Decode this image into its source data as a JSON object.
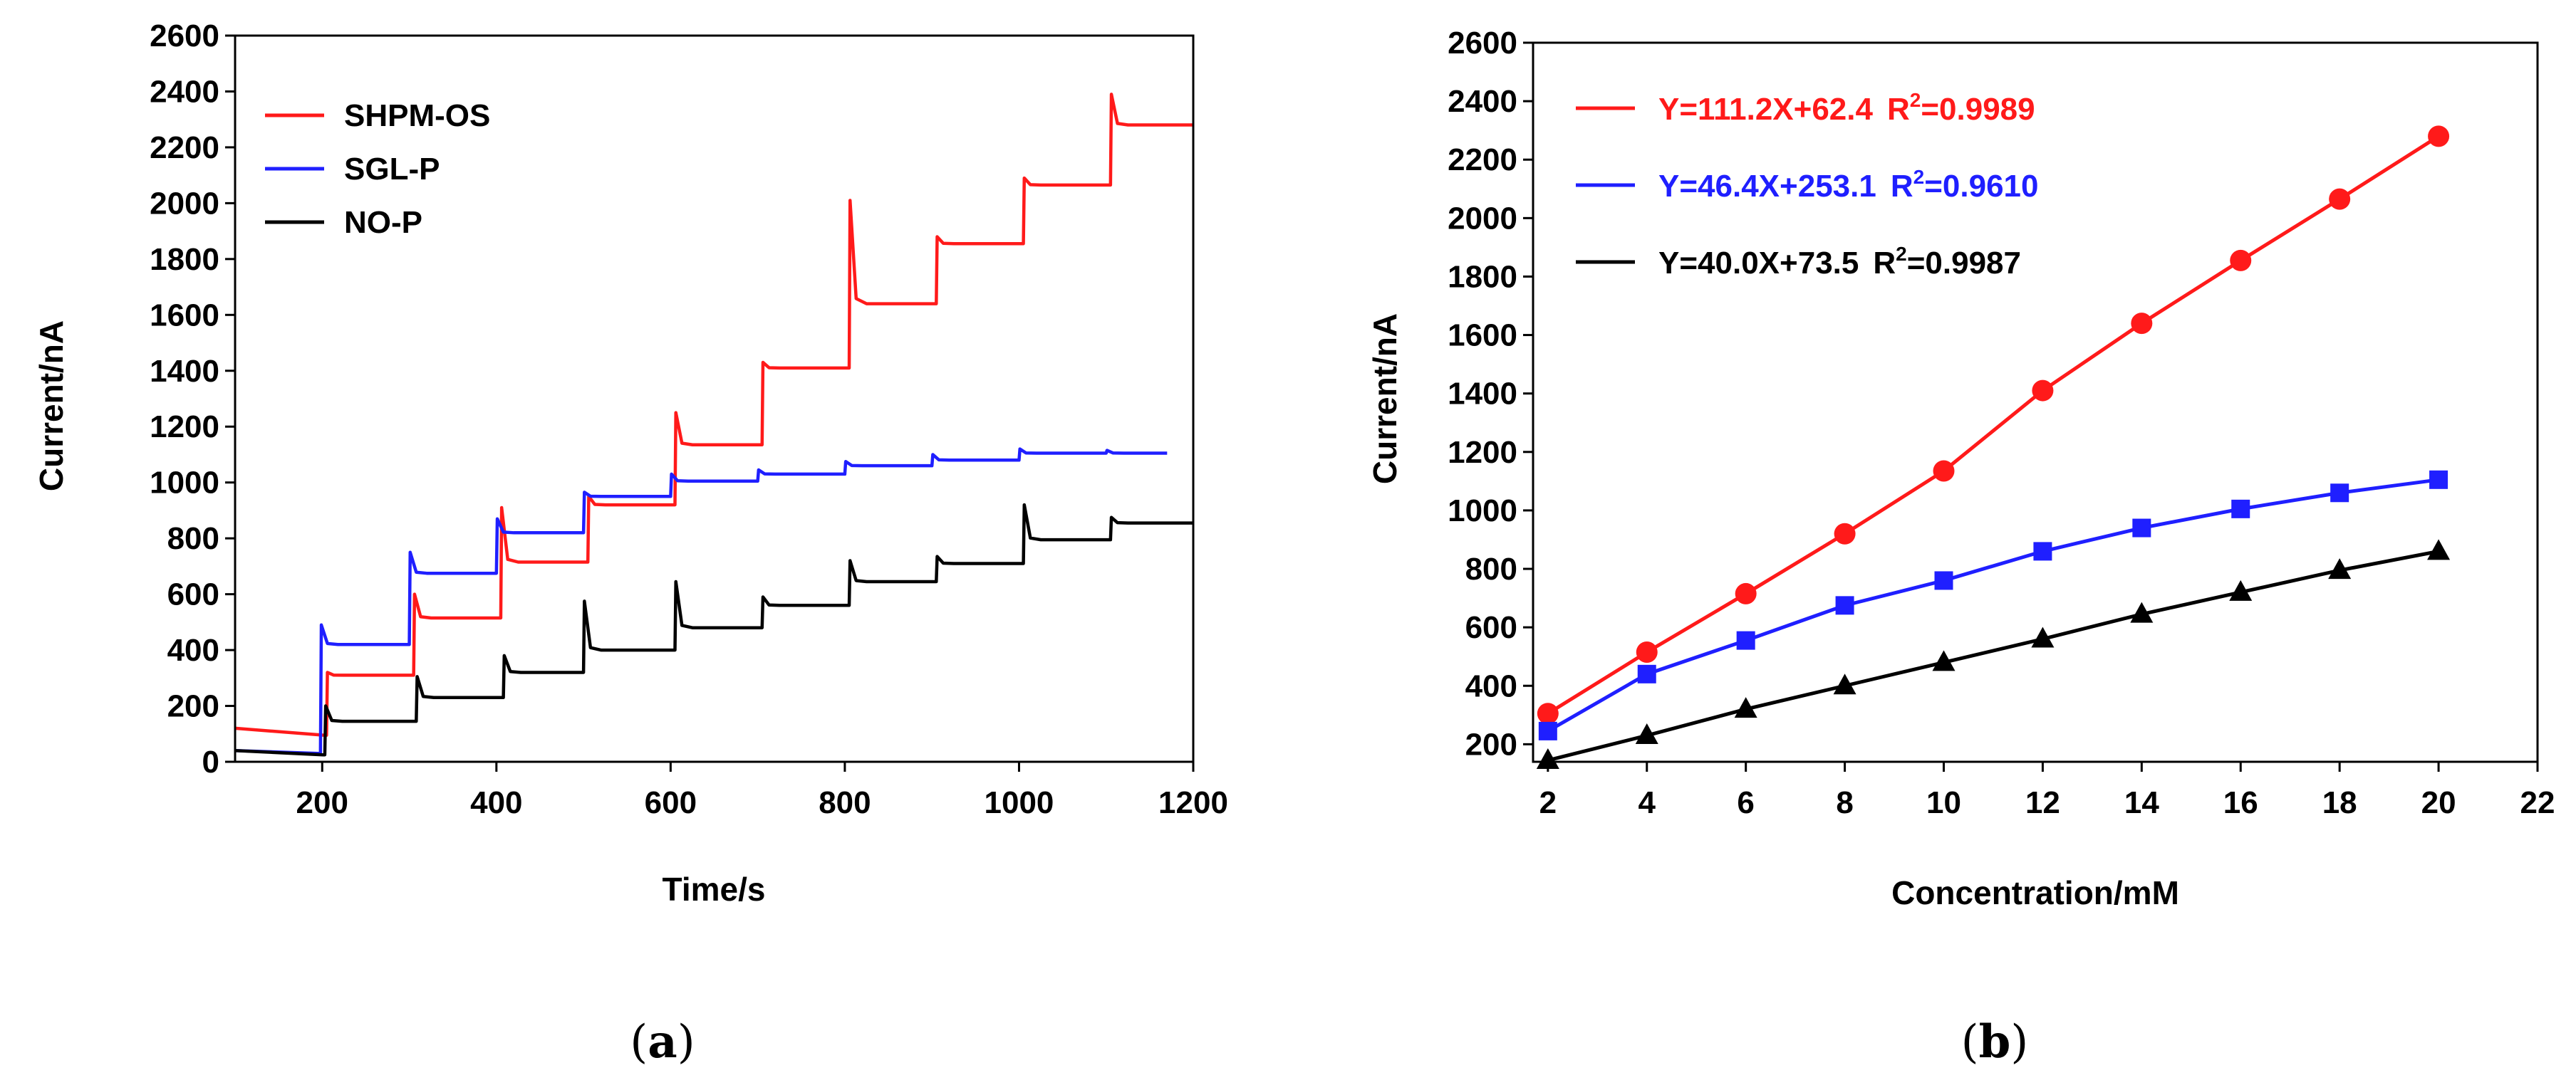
{
  "figure": {
    "panels": [
      {
        "open": "(",
        "letter": "a",
        "close": ")"
      },
      {
        "open": "(",
        "letter": "b",
        "close": ")"
      }
    ]
  },
  "colors": {
    "red": "#ff1a1a",
    "blue": "#1f1fff",
    "black": "#000000"
  },
  "chart_data": [
    {
      "type": "line",
      "panel": "a",
      "xlabel": "Time/s",
      "ylabel": "Current/nA",
      "xlim": [
        100,
        1200
      ],
      "ylim": [
        0,
        2600
      ],
      "xticks": [
        200,
        400,
        600,
        800,
        1000,
        1200
      ],
      "yticks": [
        0,
        200,
        400,
        600,
        800,
        1000,
        1200,
        1400,
        1600,
        1800,
        2000,
        2200,
        2400,
        2600
      ],
      "legend": {
        "position": "top-left",
        "entries": [
          "SHPM-OS",
          "SGL-P",
          "NO-P"
        ]
      },
      "series": [
        {
          "name": "SHPM-OS",
          "color": "#ff1a1a",
          "end": 1200,
          "start_level": 120,
          "end_start_level": 95,
          "initial_spike": 200,
          "steps": [
            {
              "t": 205,
              "spike": 320,
              "level": 310
            },
            {
              "t": 305,
              "spike": 600,
              "level": 515
            },
            {
              "t": 405,
              "spike": 910,
              "level": 715
            },
            {
              "t": 505,
              "spike": 950,
              "level": 920
            },
            {
              "t": 605,
              "spike": 1250,
              "level": 1135
            },
            {
              "t": 705,
              "spike": 1430,
              "level": 1410
            },
            {
              "t": 805,
              "spike": 2010,
              "level": 1640
            },
            {
              "t": 905,
              "spike": 1880,
              "level": 1855
            },
            {
              "t": 1005,
              "spike": 2090,
              "level": 2065
            },
            {
              "t": 1105,
              "spike": 2390,
              "level": 2280
            }
          ]
        },
        {
          "name": "SGL-P",
          "color": "#1f1fff",
          "end": 1170,
          "start_level": 40,
          "end_start_level": 30,
          "initial_spike": 30,
          "steps": [
            {
              "t": 198,
              "spike": 490,
              "level": 420
            },
            {
              "t": 300,
              "spike": 750,
              "level": 675
            },
            {
              "t": 400,
              "spike": 870,
              "level": 820
            },
            {
              "t": 500,
              "spike": 965,
              "level": 950
            },
            {
              "t": 600,
              "spike": 1030,
              "level": 1005
            },
            {
              "t": 700,
              "spike": 1045,
              "level": 1030
            },
            {
              "t": 800,
              "spike": 1075,
              "level": 1060
            },
            {
              "t": 900,
              "spike": 1100,
              "level": 1080
            },
            {
              "t": 1000,
              "spike": 1120,
              "level": 1105
            },
            {
              "t": 1100,
              "spike": 1115,
              "level": 1105
            }
          ]
        },
        {
          "name": "NO-P",
          "color": "#000000",
          "end": 1200,
          "start_level": 40,
          "end_start_level": 25,
          "initial_spike": 25,
          "steps": [
            {
              "t": 203,
              "spike": 200,
              "level": 145
            },
            {
              "t": 308,
              "spike": 305,
              "level": 230
            },
            {
              "t": 408,
              "spike": 380,
              "level": 320
            },
            {
              "t": 500,
              "spike": 575,
              "level": 400
            },
            {
              "t": 605,
              "spike": 645,
              "level": 480
            },
            {
              "t": 705,
              "spike": 590,
              "level": 560
            },
            {
              "t": 805,
              "spike": 720,
              "level": 645
            },
            {
              "t": 905,
              "spike": 735,
              "level": 710
            },
            {
              "t": 1005,
              "spike": 920,
              "level": 795
            },
            {
              "t": 1105,
              "spike": 875,
              "level": 855
            }
          ]
        }
      ]
    },
    {
      "type": "line",
      "panel": "b",
      "xlabel": "Concentration/mM",
      "ylabel": "Current/nA",
      "xlim": [
        1.7,
        22
      ],
      "ylim": [
        140,
        2600
      ],
      "xticks": [
        2,
        4,
        6,
        8,
        10,
        12,
        14,
        16,
        18,
        20,
        22
      ],
      "yticks": [
        200,
        400,
        600,
        800,
        1000,
        1200,
        1400,
        1600,
        1800,
        2000,
        2200,
        2400,
        2600
      ],
      "legend": {
        "position": "top-left"
      },
      "x": [
        2,
        4,
        6,
        8,
        10,
        12,
        14,
        16,
        18,
        20
      ],
      "series": [
        {
          "name": "SHPM-OS",
          "color": "#ff1a1a",
          "marker": "circle",
          "equation": "Y=111.2X+62.4",
          "r2_label": "R",
          "r2_sup": "2",
          "r2_value": "=0.9989",
          "values": [
            305,
            515,
            715,
            920,
            1135,
            1410,
            1640,
            1855,
            2065,
            2280
          ]
        },
        {
          "name": "SGL-P",
          "color": "#1f1fff",
          "marker": "square",
          "equation": "Y=46.4X+253.1",
          "r2_label": "R",
          "r2_sup": "2",
          "r2_value": "=0.9610",
          "values": [
            245,
            440,
            555,
            675,
            760,
            860,
            940,
            1005,
            1060,
            1105
          ]
        },
        {
          "name": "NO-P",
          "color": "#000000",
          "marker": "triangle",
          "equation": "Y=40.0X+73.5",
          "r2_label": "R",
          "r2_sup": "2",
          "r2_value": "=0.9987",
          "values": [
            145,
            230,
            320,
            400,
            480,
            560,
            645,
            720,
            795,
            860
          ]
        }
      ]
    }
  ]
}
